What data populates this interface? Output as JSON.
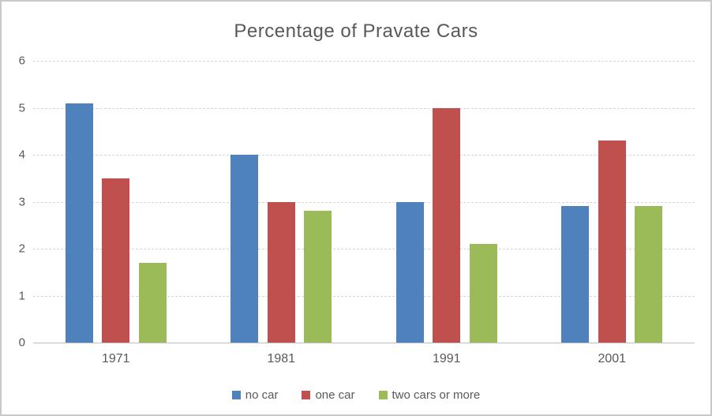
{
  "chart_data": {
    "type": "bar",
    "title": "Percentage of Pravate Cars",
    "categories": [
      "1971",
      "1981",
      "1991",
      "2001"
    ],
    "series": [
      {
        "name": "no car",
        "color": "#4F81BD",
        "values": [
          5.1,
          4.0,
          3.0,
          2.9
        ]
      },
      {
        "name": "one car",
        "color": "#C0504D",
        "values": [
          3.5,
          3.0,
          5.0,
          4.3
        ]
      },
      {
        "name": "two cars or more",
        "color": "#9BBB59",
        "values": [
          1.7,
          2.8,
          2.1,
          2.9
        ]
      }
    ],
    "xlabel": "",
    "ylabel": "",
    "ylim": [
      0,
      6
    ],
    "ytick_step": 1,
    "yticks": [
      0,
      1,
      2,
      3,
      4,
      5,
      6
    ],
    "grid": true,
    "gridline_style": "dashed",
    "legend_position": "bottom",
    "colors": {
      "title_text": "#595959",
      "axis_text": "#595959",
      "gridline": "#d6d6d6",
      "axis_line": "#bfbfbf",
      "frame_border": "#c9c9c9",
      "background": "#ffffff"
    }
  }
}
